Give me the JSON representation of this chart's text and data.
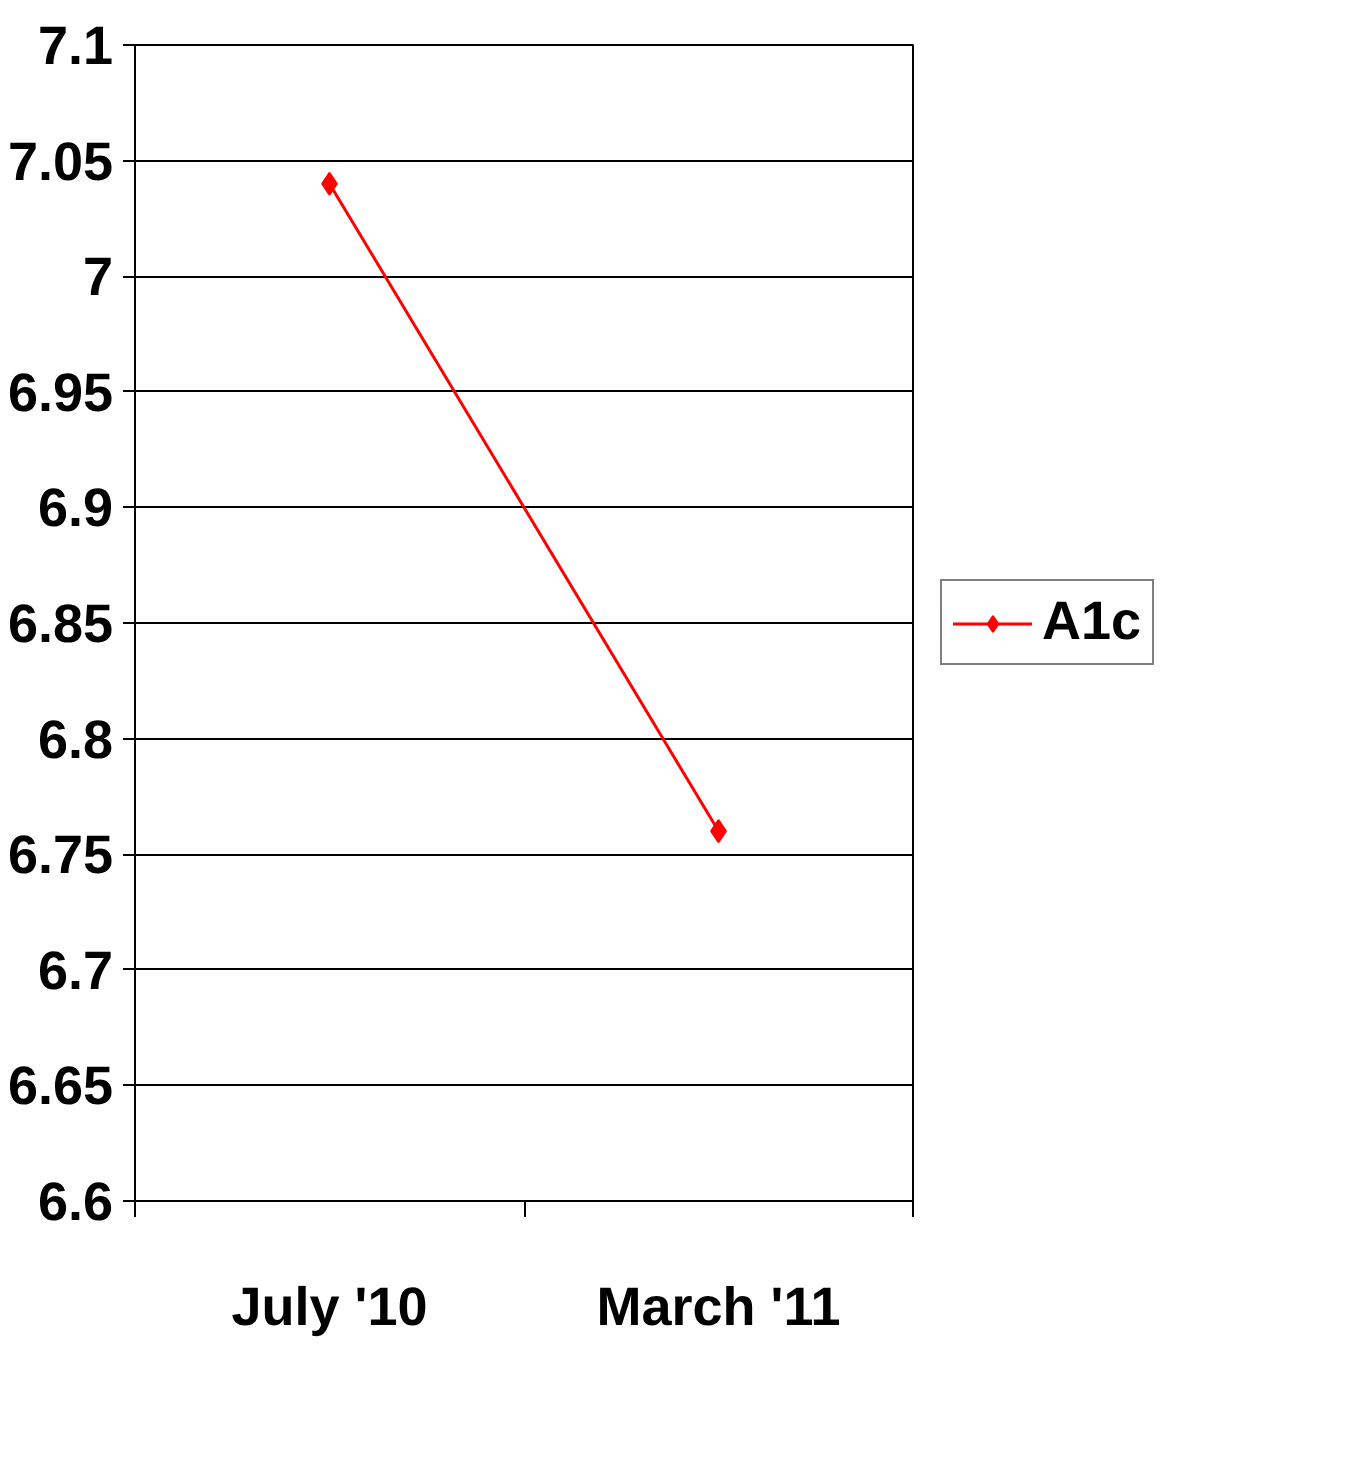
{
  "chart_data": {
    "type": "line",
    "categories": [
      "July '10",
      "March '11"
    ],
    "series": [
      {
        "name": "A1c",
        "color": "#ff0000",
        "values": [
          7.04,
          6.76
        ]
      }
    ],
    "ylim": [
      6.6,
      7.1
    ],
    "yticks": [
      6.6,
      6.65,
      6.7,
      6.75,
      6.8,
      6.85,
      6.9,
      6.95,
      7,
      7.05,
      7.1
    ],
    "grid": "y",
    "legend": "right",
    "marker": "diamond",
    "line_style": "solid"
  }
}
